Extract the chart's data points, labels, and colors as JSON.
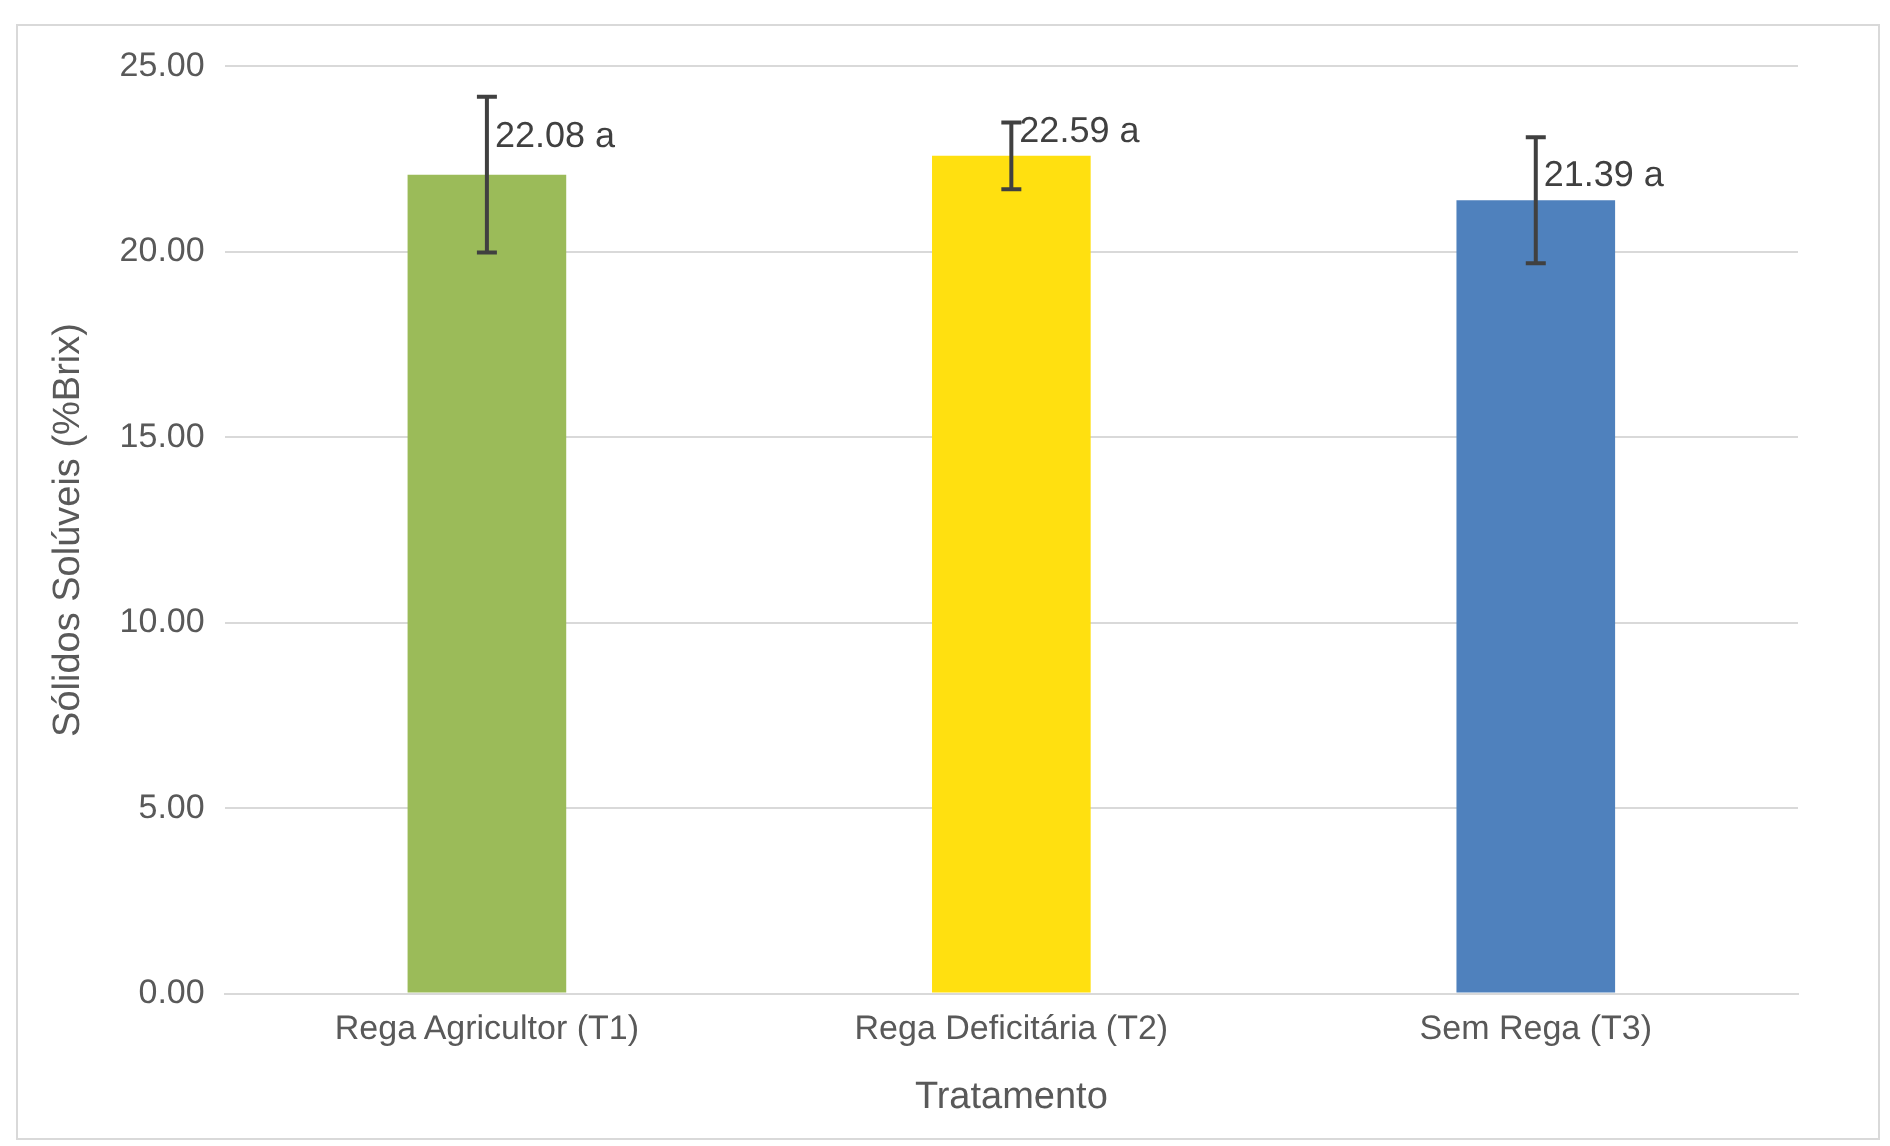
{
  "chart_data": {
    "type": "bar",
    "xlabel": "Tratamento",
    "ylabel": "Sólidos Solúveis (%Brix)",
    "categories": [
      "Rega Agricultor (T1)",
      "Rega Deficitária (T2)",
      "Sem Rega (T3)"
    ],
    "values": [
      22.08,
      22.59,
      21.39
    ],
    "colors": [
      "#9bbb59",
      "#ffe010",
      "#4f81bd"
    ],
    "errors": [
      2.1,
      0.9,
      1.7
    ],
    "value_labels": [
      "22.08 a",
      "22.59 a",
      "21.39 a"
    ],
    "ylim": [
      0,
      25
    ],
    "yticks": [
      {
        "value": 0,
        "label": "0.00"
      },
      {
        "value": 5,
        "label": "5.00"
      },
      {
        "value": 10,
        "label": "10.00"
      },
      {
        "value": 15,
        "label": "15.00"
      },
      {
        "value": 20,
        "label": "20.00"
      },
      {
        "value": 25,
        "label": "25.00"
      }
    ],
    "grid": "y",
    "legend": false
  }
}
